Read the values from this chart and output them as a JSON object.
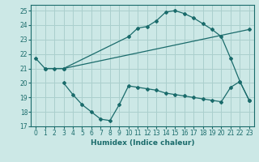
{
  "xlabel": "Humidex (Indice chaleur)",
  "ylabel": "",
  "xlim": [
    -0.5,
    23.5
  ],
  "ylim": [
    17,
    25.4
  ],
  "yticks": [
    17,
    18,
    19,
    20,
    21,
    22,
    23,
    24,
    25
  ],
  "xticks": [
    0,
    1,
    2,
    3,
    4,
    5,
    6,
    7,
    8,
    9,
    10,
    11,
    12,
    13,
    14,
    15,
    16,
    17,
    18,
    19,
    20,
    21,
    22,
    23
  ],
  "bg_color": "#cce8e6",
  "grid_color": "#aacfcd",
  "line_color": "#1a6b6b",
  "line1_x": [
    0,
    1,
    2,
    3,
    10,
    11,
    12,
    13,
    14,
    15,
    16,
    17,
    18,
    19,
    20,
    21,
    22,
    23
  ],
  "line1_y": [
    21.7,
    21.0,
    21.0,
    21.0,
    23.2,
    23.8,
    23.9,
    24.3,
    24.9,
    25.0,
    24.8,
    24.5,
    24.1,
    23.7,
    23.2,
    21.7,
    20.1,
    18.8
  ],
  "line2_x": [
    1,
    3,
    23
  ],
  "line2_y": [
    21.0,
    21.0,
    23.7
  ],
  "line3_x": [
    3,
    4,
    5,
    6,
    7,
    8,
    9,
    10,
    11,
    12,
    13,
    14,
    15,
    16,
    17,
    18,
    19,
    20,
    21,
    22,
    23
  ],
  "line3_y": [
    20.0,
    19.2,
    18.5,
    18.0,
    17.5,
    17.4,
    18.5,
    19.8,
    19.7,
    19.6,
    19.5,
    19.3,
    19.2,
    19.1,
    19.0,
    18.9,
    18.8,
    18.7,
    19.7,
    20.1,
    18.8
  ],
  "marker": "D",
  "markersize": 2.0,
  "linewidth": 0.9
}
